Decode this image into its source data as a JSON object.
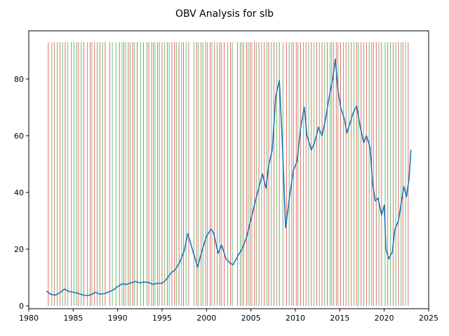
{
  "chart_data": {
    "type": "line",
    "title": "OBV Analysis for slb",
    "xlabel": "",
    "ylabel": "",
    "xlim": [
      1980,
      2025
    ],
    "ylim": [
      -1,
      97
    ],
    "x_ticks": [
      "1980",
      "1985",
      "1990",
      "1995",
      "2000",
      "2005",
      "2010",
      "2015",
      "2020",
      "2025"
    ],
    "y_ticks": [
      "0",
      "20",
      "40",
      "60",
      "80"
    ],
    "grid": false,
    "legend": "none",
    "signal_line_top": 93,
    "colors": {
      "price": "#1f77b4",
      "buy": "#2ca02c",
      "sell": "#d62728"
    },
    "series": [
      {
        "name": "",
        "x": [
          1982.0,
          1982.5,
          1983.0,
          1983.5,
          1984.0,
          1984.5,
          1985.0,
          1985.5,
          1986.0,
          1986.5,
          1987.0,
          1987.5,
          1988.0,
          1988.5,
          1989.0,
          1989.5,
          1990.0,
          1990.5,
          1991.0,
          1991.5,
          1992.0,
          1992.5,
          1993.0,
          1993.5,
          1994.0,
          1994.5,
          1995.0,
          1995.5,
          1996.0,
          1996.5,
          1997.0,
          1997.5,
          1997.9,
          1998.5,
          1999.0,
          1999.5,
          2000.0,
          2000.5,
          2000.8,
          2001.3,
          2001.7,
          2002.2,
          2002.7,
          2003.0,
          2003.5,
          2004.0,
          2004.5,
          2005.0,
          2005.5,
          2006.0,
          2006.3,
          2006.7,
          2007.0,
          2007.4,
          2007.8,
          2008.2,
          2008.5,
          2008.9,
          2009.2,
          2009.5,
          2009.8,
          2010.2,
          2010.6,
          2011.0,
          2011.3,
          2011.8,
          2012.2,
          2012.6,
          2013.0,
          2013.4,
          2013.8,
          2014.2,
          2014.5,
          2014.8,
          2015.1,
          2015.5,
          2015.8,
          2016.1,
          2016.5,
          2016.9,
          2017.3,
          2017.7,
          2018.0,
          2018.4,
          2018.7,
          2019.0,
          2019.3,
          2019.7,
          2020.0,
          2020.2,
          2020.5,
          2020.9,
          2021.2,
          2021.6,
          2021.9,
          2022.2,
          2022.5,
          2022.8,
          2023.0
        ],
        "values": [
          5.2,
          4.0,
          3.8,
          4.6,
          5.9,
          5.1,
          4.8,
          4.5,
          3.9,
          3.6,
          3.9,
          4.8,
          4.1,
          4.3,
          4.9,
          5.6,
          6.8,
          7.8,
          7.6,
          8.1,
          8.6,
          8.1,
          8.4,
          8.2,
          7.6,
          8.0,
          7.9,
          9.4,
          11.6,
          12.8,
          15.5,
          19.5,
          25.5,
          19.0,
          13.8,
          19.5,
          24.5,
          27.0,
          25.8,
          18.5,
          21.5,
          16.5,
          15.0,
          14.5,
          17.5,
          20.0,
          24.0,
          30.5,
          37.0,
          43.0,
          46.5,
          41.5,
          49.5,
          55.0,
          74.0,
          79.5,
          60.0,
          27.5,
          35.0,
          42.0,
          48.0,
          51.0,
          63.0,
          70.0,
          60.0,
          55.0,
          58.0,
          63.0,
          60.0,
          66.0,
          73.5,
          80.0,
          87.0,
          76.0,
          70.0,
          66.0,
          61.0,
          64.0,
          68.0,
          70.5,
          63.0,
          57.5,
          60.0,
          56.0,
          43.0,
          37.0,
          38.0,
          32.0,
          35.5,
          20.0,
          16.5,
          19.0,
          27.0,
          30.0,
          36.0,
          42.0,
          38.5,
          45.0,
          55.0
        ]
      }
    ],
    "buy_signals_x": [
      1982.6,
      1983.2,
      1983.8,
      1984.4,
      1985.1,
      1985.4,
      1985.9,
      1986.6,
      1987.1,
      1987.7,
      1988.3,
      1989.4,
      1989.8,
      1990.5,
      1990.9,
      1991.4,
      1991.9,
      1992.6,
      1993.3,
      1993.8,
      1994.2,
      1994.7,
      1995.3,
      1995.8,
      1996.6,
      1997.2,
      1997.7,
      1998.6,
      1999.1,
      1999.6,
      2000.1,
      2000.6,
      2001.2,
      2001.7,
      2002.4,
      2002.9,
      2003.8,
      2004.2,
      2004.7,
      2005.1,
      2005.6,
      2006.2,
      2006.8,
      2007.3,
      2007.9,
      2008.6,
      2009.3,
      2009.8,
      2010.3,
      2010.9,
      2011.5,
      2012.1,
      2012.7,
      2013.3,
      2013.9,
      2014.3,
      2014.8,
      2015.4,
      2016.0,
      2016.6,
      2017.1,
      2017.7,
      2018.3,
      2018.8,
      2019.4,
      2020.1,
      2020.7,
      2021.3,
      2021.9,
      2022.4
    ],
    "sell_signals_x": [
      1982.2,
      1982.9,
      1983.5,
      1984.1,
      1984.8,
      1985.6,
      1986.2,
      1986.9,
      1987.4,
      1988.0,
      1988.6,
      1989.1,
      1990.2,
      1990.7,
      1991.2,
      1991.7,
      1992.2,
      1992.9,
      1993.5,
      1994.0,
      1994.5,
      1995.0,
      1995.6,
      1996.1,
      1996.4,
      1996.9,
      1997.4,
      1998.0,
      1998.9,
      1999.4,
      1999.9,
      2000.4,
      2000.9,
      2001.5,
      2002.0,
      2002.7,
      2003.5,
      2004.0,
      2004.5,
      2004.9,
      2005.4,
      2005.9,
      2006.5,
      2007.0,
      2007.6,
      2008.2,
      2009.0,
      2009.6,
      2010.1,
      2010.6,
      2011.2,
      2011.8,
      2012.4,
      2013.0,
      2013.6,
      2014.1,
      2014.6,
      2015.1,
      2015.7,
      2016.3,
      2016.9,
      2017.4,
      2018.0,
      2018.6,
      2019.1,
      2019.7,
      2020.4,
      2021.0,
      2021.6,
      2022.1,
      2022.7
    ]
  }
}
